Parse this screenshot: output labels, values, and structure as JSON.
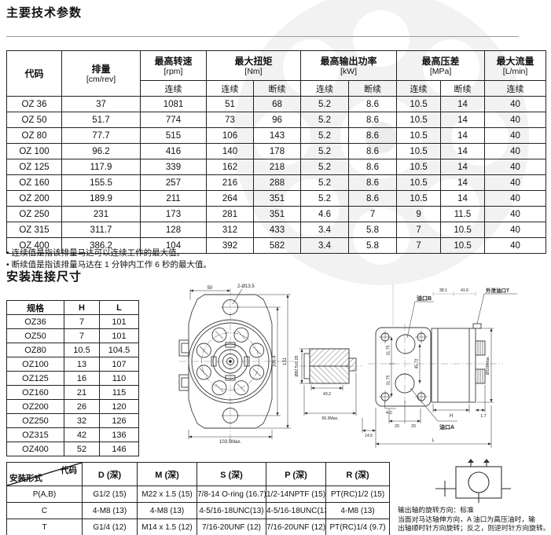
{
  "page": {
    "title": "主要技术参数",
    "section2_title": "安装连接尺寸"
  },
  "spec_table": {
    "col_code": "代码",
    "col_disp": "排量",
    "col_disp_unit": "[cm/rev]",
    "col_speed": "最高转速",
    "col_speed_unit": "[rpm]",
    "col_torque": "最大扭矩",
    "col_torque_unit": "[Nm]",
    "col_power": "最高输出功率",
    "col_power_unit": "[kW]",
    "col_dp": "最高压差",
    "col_dp_unit": "[MPa]",
    "col_flow": "最大流量",
    "col_flow_unit": "[L/min]",
    "sub_cont": "连续",
    "sub_int": "断续",
    "rows": [
      [
        "OZ 36",
        "37",
        "1081",
        "51",
        "68",
        "5.2",
        "8.6",
        "10.5",
        "14",
        "40"
      ],
      [
        "OZ 50",
        "51.7",
        "774",
        "73",
        "96",
        "5.2",
        "8.6",
        "10.5",
        "14",
        "40"
      ],
      [
        "OZ 80",
        "77.7",
        "515",
        "106",
        "143",
        "5.2",
        "8.6",
        "10.5",
        "14",
        "40"
      ],
      [
        "OZ 100",
        "96.2",
        "416",
        "140",
        "178",
        "5.2",
        "8.6",
        "10.5",
        "14",
        "40"
      ],
      [
        "OZ 125",
        "117.9",
        "339",
        "162",
        "218",
        "5.2",
        "8.6",
        "10.5",
        "14",
        "40"
      ],
      [
        "OZ 160",
        "155.5",
        "257",
        "216",
        "288",
        "5.2",
        "8.6",
        "10.5",
        "14",
        "40"
      ],
      [
        "OZ 200",
        "189.9",
        "211",
        "264",
        "351",
        "5.2",
        "8.6",
        "10.5",
        "14",
        "40"
      ],
      [
        "OZ 250",
        "231",
        "173",
        "281",
        "351",
        "4.6",
        "7",
        "9",
        "11.5",
        "40"
      ],
      [
        "OZ 315",
        "311.7",
        "128",
        "312",
        "433",
        "3.4",
        "5.8",
        "7",
        "10.5",
        "40"
      ],
      [
        "OZ 400",
        "386.2",
        "104",
        "392",
        "582",
        "3.4",
        "5.8",
        "7",
        "10.5",
        "40"
      ]
    ]
  },
  "notes": {
    "line1": "• 连续值是指该排量马达可以连续工作的最大值。",
    "line2": "• 断续值是指该排量马达在 1 分钟内工作 6 秒的最大值。"
  },
  "dim_table": {
    "h_spec": "规格",
    "h_H": "H",
    "h_L": "L",
    "rows": [
      [
        "OZ36",
        "7",
        "101"
      ],
      [
        "OZ50",
        "7",
        "101"
      ],
      [
        "OZ80",
        "10.5",
        "104.5"
      ],
      [
        "OZ100",
        "13",
        "107"
      ],
      [
        "OZ125",
        "16",
        "110"
      ],
      [
        "OZ160",
        "21",
        "115"
      ],
      [
        "OZ200",
        "26",
        "120"
      ],
      [
        "OZ250",
        "32",
        "126"
      ],
      [
        "OZ315",
        "42",
        "136"
      ],
      [
        "OZ400",
        "52",
        "146"
      ]
    ]
  },
  "mount_table": {
    "corner_top": "代码",
    "corner_bottom": "安装形式",
    "h_d": "D (深)",
    "h_m": "M (深)",
    "h_s": "S (深)",
    "h_p": "P (深)",
    "h_r": "R (深)",
    "rows": [
      [
        "P(A,B)",
        "G1/2 (15)",
        "M22 x 1.5 (15)",
        "7/8-14 O-ring (16.7)",
        "1/2-14NPTF (15)",
        "PT(RC)1/2 (15)"
      ],
      [
        "C",
        "4-M8 (13)",
        "4-M8 (13)",
        "4-5/16-18UNC(13)",
        "4-5/16-18UNC(13)",
        "4-M8 (13)"
      ],
      [
        "T",
        "G1/4 (12)",
        "M14 x 1.5 (12)",
        "7/16-20UNF (12)",
        "7/16-20UNF (12)",
        "PT(RC)1/4 (9.7)"
      ]
    ]
  },
  "drawing": {
    "front": {
      "dim_top": "50",
      "holes_label": "2-Ø13.5",
      "dim_inner": "106.4",
      "dim_outer": "131",
      "dim_bottom": "103.5Max."
    },
    "shaft_section": {
      "dia": "Ø82.5±0.05",
      "dim_width": "43.2",
      "dim_max": "55.3Max."
    },
    "side": {
      "port_b": "油口B",
      "drain_port": "外泄油口T",
      "port_a": "油口A",
      "bolts": "4-C",
      "dim_top1": "38.1",
      "dim_top2": "41.6",
      "dim_31a": "31.75",
      "dim_31b": "31.75",
      "dim_4572": "45.72",
      "dim_20a": "20",
      "dim_20b": "20",
      "dim_145": "14.5",
      "dim_L": "L",
      "dim_H": "H",
      "dim_17": "1.7",
      "dia_max": "Ø108Max."
    }
  },
  "rotation_note": {
    "line1": "输出轴的旋转方向：标准",
    "line2": "当面对马达轴伸方向，A 油口为高压油时，输",
    "line3": "出轴顺时针方向旋转；反之，则逆时针方向旋转。"
  }
}
